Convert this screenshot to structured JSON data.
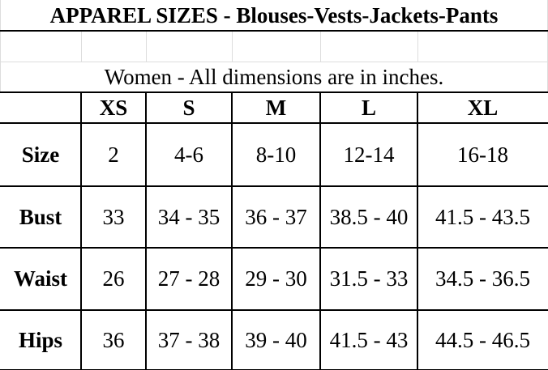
{
  "title": "APPAREL SIZES - Blouses-Vests-Jackets-Pants",
  "subtitle": "Women - All dimensions are in inches.",
  "columns": [
    "",
    "XS",
    "S",
    "M",
    "L",
    "XL"
  ],
  "rows": [
    {
      "label": "Size",
      "values": [
        "2",
        "4-6",
        "8-10",
        "12-14",
        "16-18"
      ]
    },
    {
      "label": "Bust",
      "values": [
        "33",
        "34 - 35",
        "36 - 37",
        "38.5 - 40",
        "41.5 - 43.5"
      ]
    },
    {
      "label": "Waist",
      "values": [
        "26",
        "27 - 28",
        "29 - 30",
        "31.5 - 33",
        "34.5 - 36.5"
      ]
    },
    {
      "label": "Hips",
      "values": [
        "36",
        "37 - 38",
        "39 - 40",
        "41.5 - 43",
        "44.5 - 46.5"
      ]
    }
  ]
}
